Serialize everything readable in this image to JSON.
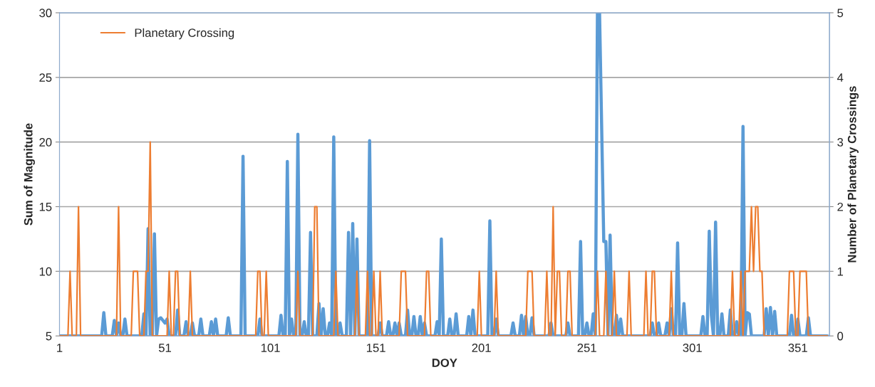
{
  "chart_data": {
    "type": "line",
    "xlabel": "DOY",
    "ylabel": "Sum of Magnitude",
    "y2label": "Number of Planetary Crossings",
    "xlim": [
      1,
      366
    ],
    "xticks": [
      1,
      51,
      101,
      151,
      201,
      251,
      301,
      351
    ],
    "ylim": [
      5,
      30
    ],
    "yticks": [
      5,
      10,
      15,
      20,
      25,
      30
    ],
    "y2lim": [
      0,
      5
    ],
    "y2ticks": [
      0,
      1,
      2,
      3,
      4,
      5
    ],
    "grid": "y",
    "legend": "top left",
    "marker": "none",
    "line_style": "solid",
    "series": [
      {
        "color": "#5b9bd5",
        "x": [
          1,
          21,
          22,
          23,
          26,
          27,
          28,
          29,
          30,
          31,
          32,
          33,
          40,
          41,
          42,
          43,
          44,
          45,
          46,
          47,
          48,
          49,
          50,
          51,
          52,
          53,
          56,
          57,
          58,
          60,
          61,
          62,
          63,
          64,
          65,
          67,
          68,
          69,
          72,
          73,
          74,
          75,
          76,
          80,
          81,
          82,
          87,
          88,
          89,
          95,
          96,
          97,
          105,
          106,
          107,
          108,
          109,
          110,
          111,
          112,
          113,
          114,
          115,
          116,
          117,
          118,
          119,
          120,
          121,
          123,
          124,
          125,
          126,
          127,
          128,
          129,
          130,
          131,
          132,
          133,
          134,
          135,
          137,
          138,
          139,
          140,
          141,
          142,
          143,
          147,
          148,
          149,
          152,
          153,
          154,
          156,
          157,
          158,
          159,
          160,
          161,
          162,
          163,
          165,
          166,
          167,
          168,
          169,
          170,
          171,
          172,
          173,
          174,
          175,
          179,
          180,
          181,
          182,
          183,
          185,
          186,
          187,
          188,
          189,
          190,
          194,
          195,
          196,
          197,
          198,
          204,
          205,
          206,
          207,
          208,
          209,
          215,
          216,
          217,
          219,
          220,
          221,
          222,
          223,
          224,
          225,
          226,
          233,
          234,
          235,
          241,
          242,
          243,
          247,
          248,
          249,
          250,
          251,
          252,
          253,
          254,
          255,
          256,
          257,
          259,
          260,
          261,
          262,
          263,
          264,
          265,
          266,
          267,
          268,
          281,
          282,
          283,
          284,
          285,
          286,
          288,
          289,
          290,
          291,
          292,
          293,
          294,
          295,
          296,
          297,
          298,
          305,
          306,
          307,
          308,
          309,
          310,
          311,
          312,
          313,
          314,
          315,
          316,
          318,
          319,
          320,
          321,
          322,
          323,
          324,
          325,
          326,
          327,
          328,
          329,
          335,
          336,
          337,
          338,
          339,
          340,
          341,
          347,
          348,
          349,
          350,
          351,
          352,
          355,
          356,
          357,
          365
        ],
        "values": [
          5,
          5,
          6.8,
          5,
          5,
          6.2,
          5,
          6.0,
          5,
          5,
          6.3,
          5,
          5,
          6.7,
          5,
          13.3,
          5,
          5,
          12.9,
          5,
          6.3,
          6.4,
          6.2,
          6.0,
          6.3,
          5,
          5,
          7.0,
          5,
          5,
          6.1,
          5,
          5,
          6.0,
          5,
          5,
          6.3,
          5,
          5,
          6.1,
          5,
          6.3,
          5,
          5,
          6.4,
          5,
          5,
          18.9,
          5,
          5,
          6.3,
          5,
          5,
          6.6,
          5,
          5,
          18.5,
          5,
          6.3,
          5,
          5,
          20.6,
          5,
          5,
          6.1,
          5,
          5,
          13.0,
          5,
          5,
          7.5,
          5,
          7.1,
          5,
          5,
          6.0,
          5,
          20.4,
          5,
          5,
          6.0,
          5,
          5,
          13.0,
          5,
          13.7,
          5,
          12.5,
          5,
          5,
          20.1,
          5,
          5,
          6.0,
          5,
          5,
          6.1,
          5,
          5,
          6.0,
          5,
          6.0,
          5,
          5,
          7.0,
          5,
          5,
          6.5,
          5,
          5,
          6.5,
          5,
          6.0,
          5,
          5,
          6.1,
          5,
          12.5,
          5,
          5,
          6.3,
          5,
          5,
          6.7,
          5,
          5,
          6.5,
          5,
          7.0,
          5,
          5,
          13.9,
          5,
          5,
          6.3,
          5,
          5,
          6.0,
          5,
          5,
          6.6,
          5,
          6.5,
          5,
          5,
          6.4,
          5,
          5,
          6.0,
          5,
          5,
          6.0,
          5,
          5,
          12.3,
          5,
          5,
          6.0,
          5,
          5,
          6.7,
          5,
          30,
          30,
          12.3,
          12.3,
          5,
          12.8,
          5,
          5,
          6.6,
          5,
          6.3,
          5,
          5,
          6.0,
          5,
          5,
          6.0,
          5,
          5,
          6.0,
          5,
          7.1,
          5,
          5,
          12.2,
          5,
          5,
          7.5,
          5,
          5,
          6.5,
          5,
          5,
          13.1,
          6.6,
          5,
          13.8,
          5,
          5,
          6.7,
          5,
          5,
          7.0,
          5,
          5,
          6.1,
          5,
          5,
          21.2,
          5,
          6.8,
          6.7,
          5,
          5,
          7.1,
          5,
          7.2,
          5,
          6.9,
          5,
          5,
          6.6,
          5,
          5,
          6.3,
          5,
          5,
          6.4,
          5,
          5
        ]
      },
      {
        "name": "Planetary Crossing",
        "color": "#ed7d31",
        "axis": "y2",
        "x": [
          1,
          5,
          6,
          7,
          9,
          10,
          11,
          28,
          29,
          30,
          35,
          36,
          38,
          39,
          41,
          42,
          43,
          44,
          45,
          52,
          53,
          54,
          55,
          56,
          57,
          58,
          62,
          63,
          64,
          94,
          95,
          96,
          97,
          98,
          99,
          100,
          113,
          114,
          115,
          121,
          122,
          123,
          124,
          131,
          132,
          133,
          141,
          142,
          143,
          146,
          147,
          148,
          149,
          150,
          151,
          152,
          153,
          154,
          162,
          163,
          165,
          166,
          174,
          175,
          176,
          177,
          199,
          200,
          201,
          207,
          208,
          209,
          222,
          223,
          225,
          226,
          231,
          232,
          233,
          234,
          235,
          236,
          237,
          238,
          239,
          241,
          242,
          243,
          244,
          255,
          256,
          257,
          259,
          260,
          261,
          263,
          264,
          265,
          270,
          271,
          272,
          278,
          279,
          280,
          281,
          282,
          283,
          284,
          290,
          291,
          292,
          319,
          320,
          321,
          323,
          324,
          325,
          326,
          328,
          329,
          330,
          331,
          332,
          333,
          334,
          335,
          346,
          347,
          349,
          350,
          351,
          352,
          355,
          356,
          365
        ],
        "values": [
          0,
          0,
          1,
          0,
          0,
          2,
          0,
          0,
          2,
          0,
          0,
          1,
          1,
          0,
          0,
          1,
          1,
          3,
          0,
          0,
          1,
          0,
          0,
          1,
          1,
          0,
          0,
          1,
          0,
          0,
          1,
          1,
          0,
          0,
          1,
          0,
          0,
          1,
          0,
          0,
          2,
          2,
          0,
          0,
          1,
          0,
          0,
          1,
          0,
          0,
          1,
          0,
          0,
          1,
          0,
          0,
          1,
          0,
          0,
          1,
          1,
          0,
          0,
          1,
          1,
          0,
          0,
          1,
          0,
          0,
          1,
          0,
          0,
          1,
          1,
          0,
          0,
          1,
          0,
          0,
          2,
          0,
          1,
          1,
          0,
          0,
          1,
          1,
          0,
          0,
          1,
          0,
          0,
          1,
          0,
          0,
          1,
          0,
          0,
          1,
          0,
          0,
          1,
          0,
          0,
          1,
          1,
          0,
          0,
          1,
          0,
          0,
          1,
          0,
          0,
          1,
          0,
          1,
          1,
          2,
          1,
          2,
          2,
          1,
          1,
          0,
          0,
          1,
          1,
          0,
          0,
          1,
          1,
          0,
          0
        ]
      }
    ]
  }
}
